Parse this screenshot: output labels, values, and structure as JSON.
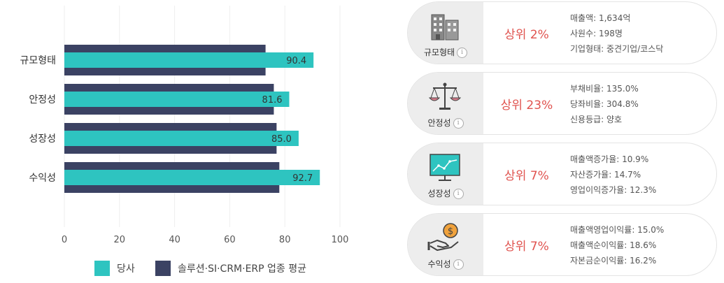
{
  "chart_data": {
    "type": "bar",
    "orientation": "horizontal",
    "categories": [
      "규모형태",
      "안정성",
      "성장성",
      "수익성"
    ],
    "series": [
      {
        "name": "당사",
        "values": [
          90.4,
          81.6,
          85.0,
          92.7
        ],
        "color": "#2ec4c0",
        "labels": [
          "90.4",
          "81.6",
          "85.0",
          "92.7"
        ]
      },
      {
        "name": "솔루션·SI·CRM·ERP 업종 평균",
        "values": [
          73,
          76,
          77,
          78
        ],
        "color": "#3b4263"
      }
    ],
    "xlim": [
      0,
      100
    ],
    "xticks": [
      "0",
      "20",
      "40",
      "60",
      "80",
      "100"
    ],
    "grid": true,
    "legend": "bottom"
  },
  "cards": [
    {
      "label": "규모형태",
      "icon": "building-icon",
      "rank": "상위 2%",
      "details": [
        "매출액: 1,634억",
        "사원수: 198명",
        "기업형태: 중견기업/코스닥"
      ]
    },
    {
      "label": "안정성",
      "icon": "balance-scale-icon",
      "rank": "상위 23%",
      "details": [
        "부채비율: 135.0%",
        "당좌비율: 304.8%",
        "신용등급: 양호"
      ]
    },
    {
      "label": "성장성",
      "icon": "growth-chart-icon",
      "rank": "상위 7%",
      "details": [
        "매출액증가율: 10.9%",
        "자산증가율: 14.7%",
        "영업이익증가율: 12.3%"
      ]
    },
    {
      "label": "수익성",
      "icon": "money-hand-icon",
      "rank": "상위 7%",
      "details": [
        "매출액영업이익률: 15.0%",
        "매출액순이익률: 18.6%",
        "자본금순이익률: 16.2%"
      ]
    }
  ],
  "info_glyph": "i",
  "coin_glyph": "$"
}
